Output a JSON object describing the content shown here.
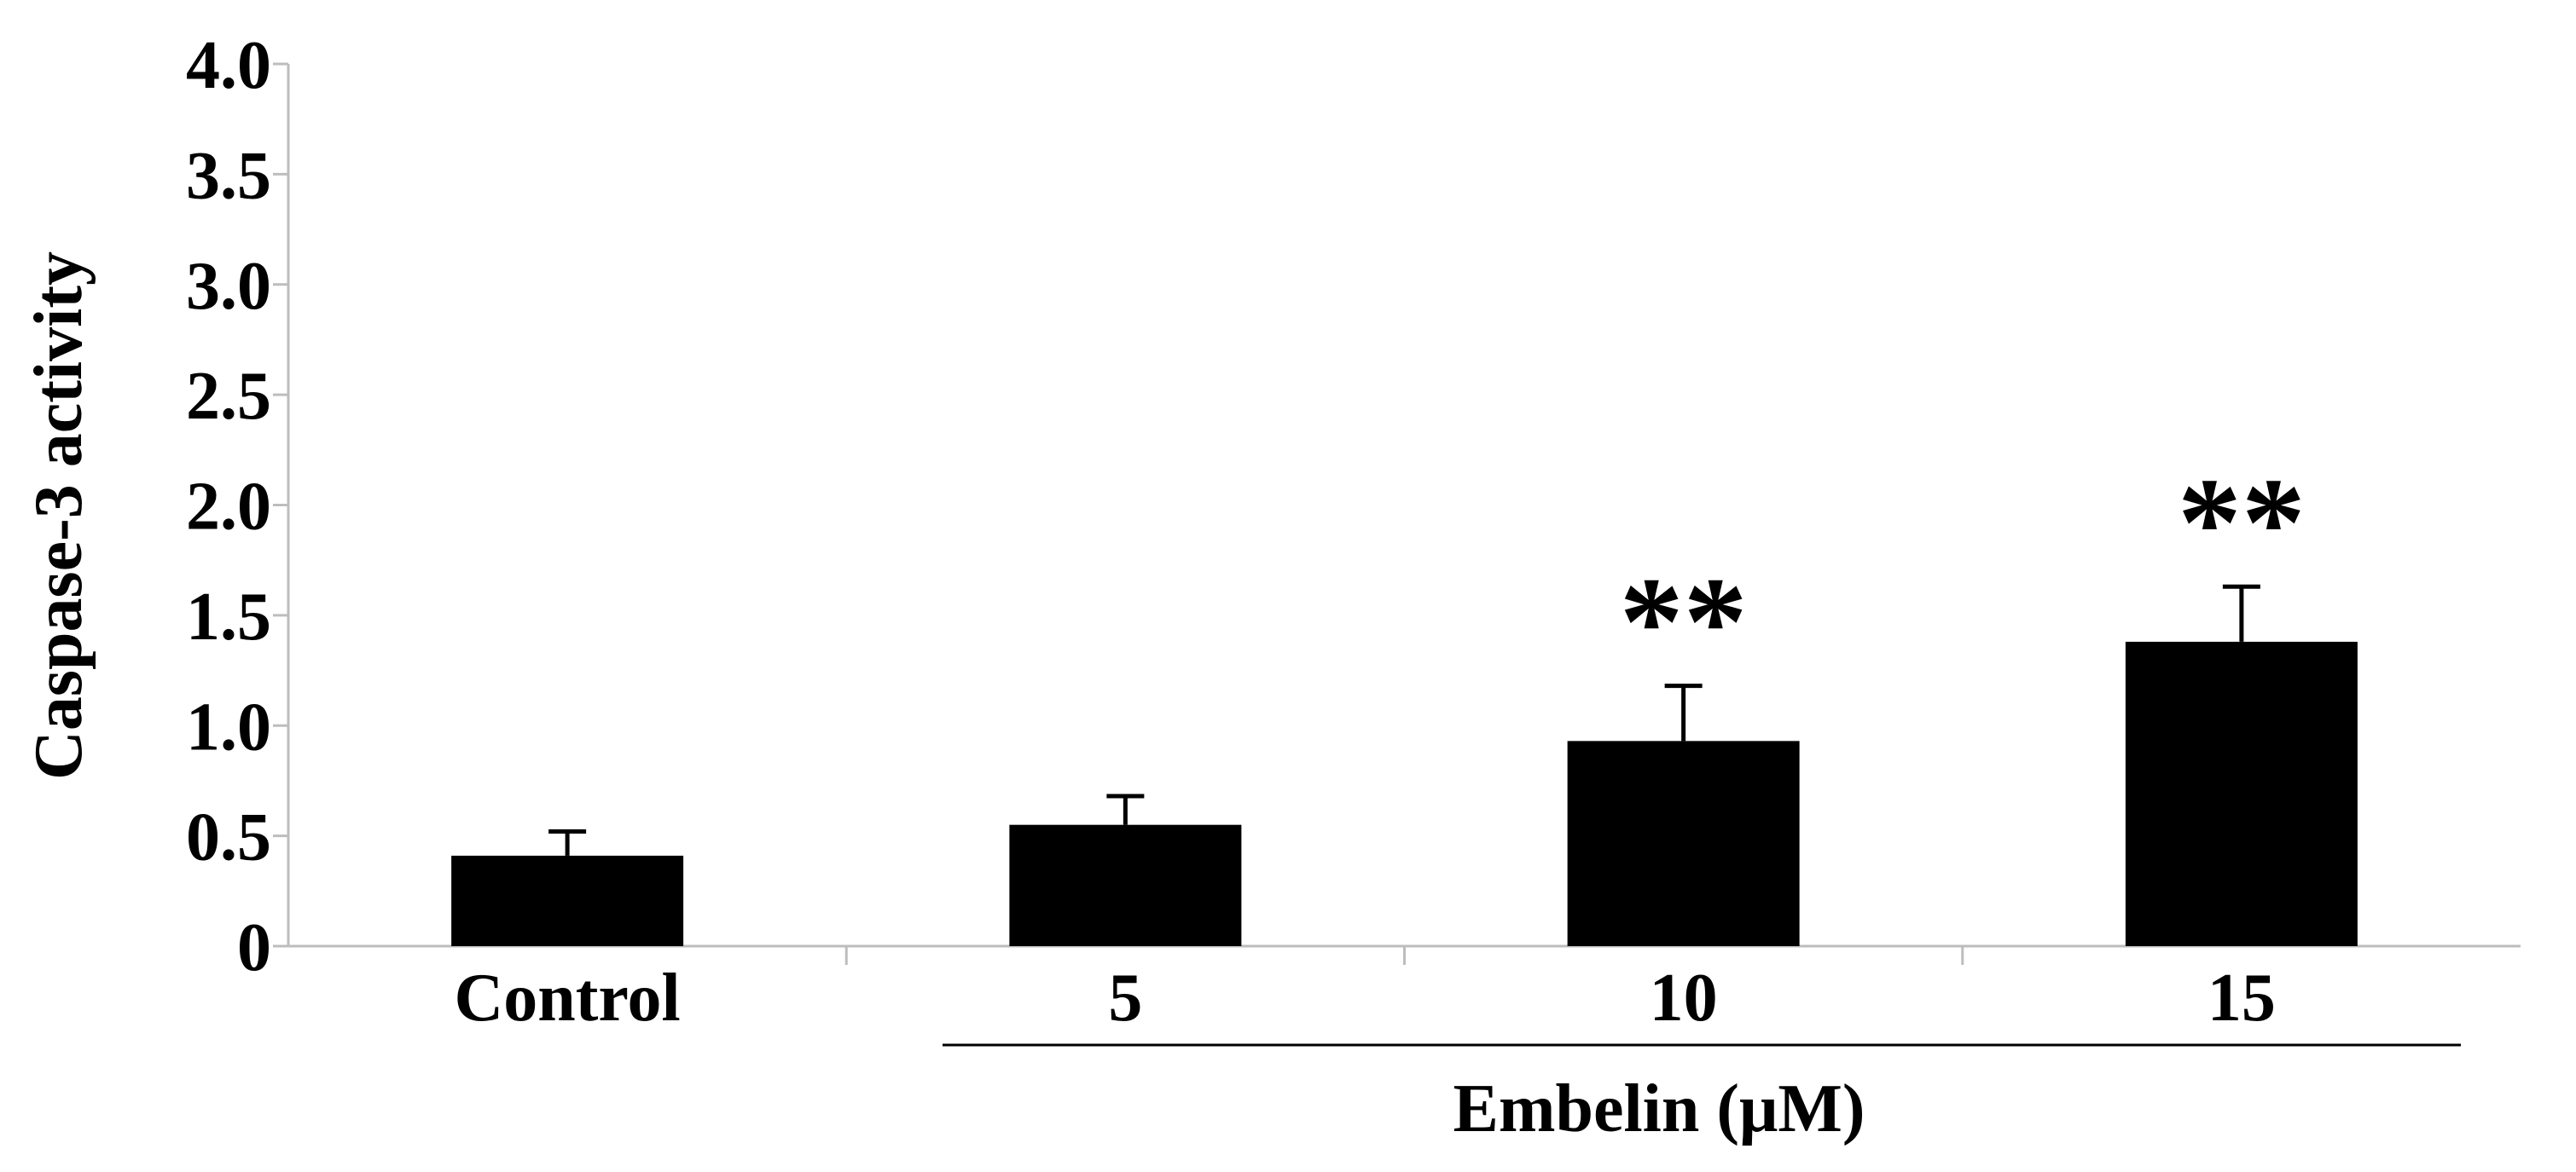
{
  "chart_data": {
    "type": "bar",
    "categories": [
      "Control",
      "5",
      "10",
      "15"
    ],
    "values": [
      0.41,
      0.55,
      0.93,
      1.38
    ],
    "errors": [
      0.11,
      0.13,
      0.25,
      0.25
    ],
    "significance": [
      "",
      "",
      "**",
      "**"
    ],
    "ylabel": "Caspase-3 activity",
    "group_label": "Embelin (μM)",
    "ylim": [
      0,
      4.0
    ],
    "yticks": [
      "0",
      "0.5",
      "1.0",
      "1.5",
      "2.0",
      "2.5",
      "3.0",
      "3.5",
      "4.0"
    ],
    "ytick_values": [
      0,
      0.5,
      1.0,
      1.5,
      2.0,
      2.5,
      3.0,
      3.5,
      4.0
    ],
    "grid": false,
    "colors": {
      "bar": "#000000",
      "axis": "#bdbdbd",
      "error": "#000000"
    }
  }
}
